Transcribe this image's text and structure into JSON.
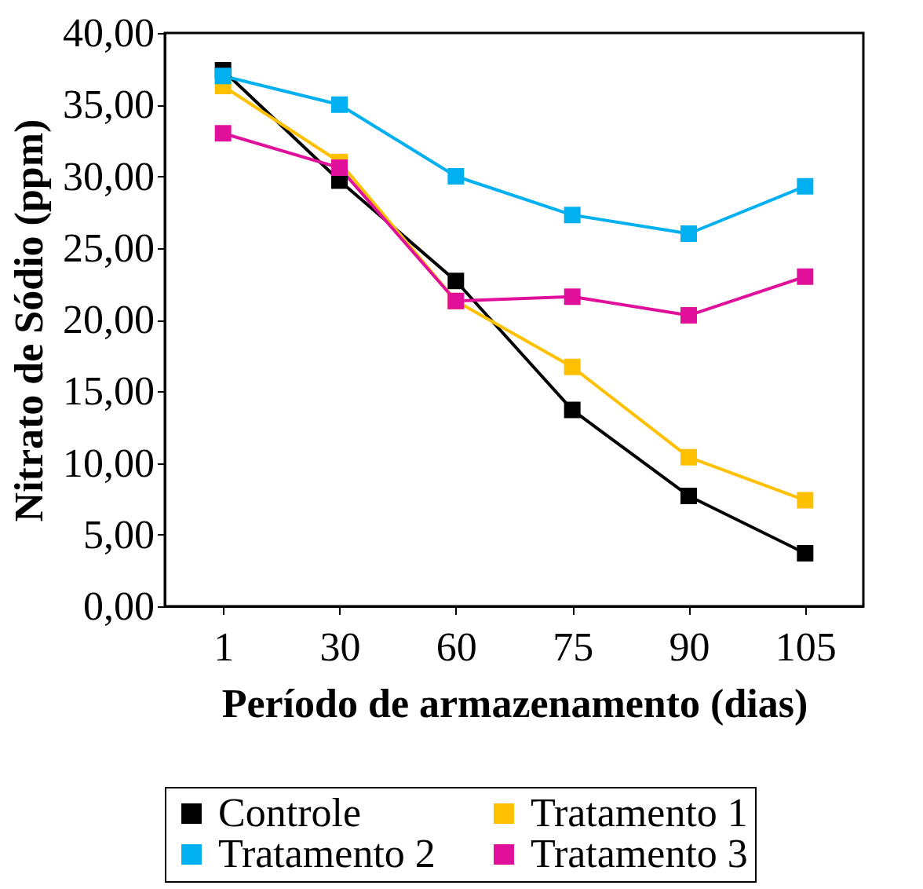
{
  "chart_data": {
    "type": "line",
    "xlabel": "Período de armazenamento (dias)",
    "ylabel": "Nitrato de Sódio (ppm)",
    "categories": [
      "1",
      "30",
      "60",
      "75",
      "90",
      "105"
    ],
    "series": [
      {
        "name": "Controle",
        "color": "#000000",
        "values": [
          37.4,
          29.7,
          22.7,
          13.7,
          7.7,
          3.7
        ]
      },
      {
        "name": "Tratamento 1",
        "color": "#ffc000",
        "values": [
          36.3,
          31.0,
          21.3,
          16.7,
          10.4,
          7.4
        ]
      },
      {
        "name": "Tratamento 2",
        "color": "#00b0f0",
        "values": [
          37.0,
          35.0,
          30.0,
          27.3,
          26.0,
          29.3
        ]
      },
      {
        "name": "Tratamento 3",
        "color": "#e0109a",
        "values": [
          33.0,
          30.6,
          21.3,
          21.6,
          20.3,
          23.0
        ]
      }
    ],
    "ylim": [
      0,
      40
    ],
    "yticks": [
      {
        "value": 0,
        "label": "0,00"
      },
      {
        "value": 5,
        "label": "5,00"
      },
      {
        "value": 10,
        "label": "10,00"
      },
      {
        "value": 15,
        "label": "15,00"
      },
      {
        "value": 20,
        "label": "20,00"
      },
      {
        "value": 25,
        "label": "25,00"
      },
      {
        "value": 30,
        "label": "30,00"
      },
      {
        "value": 35,
        "label": "35,00"
      },
      {
        "value": 40,
        "label": "40,00"
      }
    ],
    "grid": false,
    "legend": "bottom",
    "marker": "square",
    "line_style": "solid"
  }
}
